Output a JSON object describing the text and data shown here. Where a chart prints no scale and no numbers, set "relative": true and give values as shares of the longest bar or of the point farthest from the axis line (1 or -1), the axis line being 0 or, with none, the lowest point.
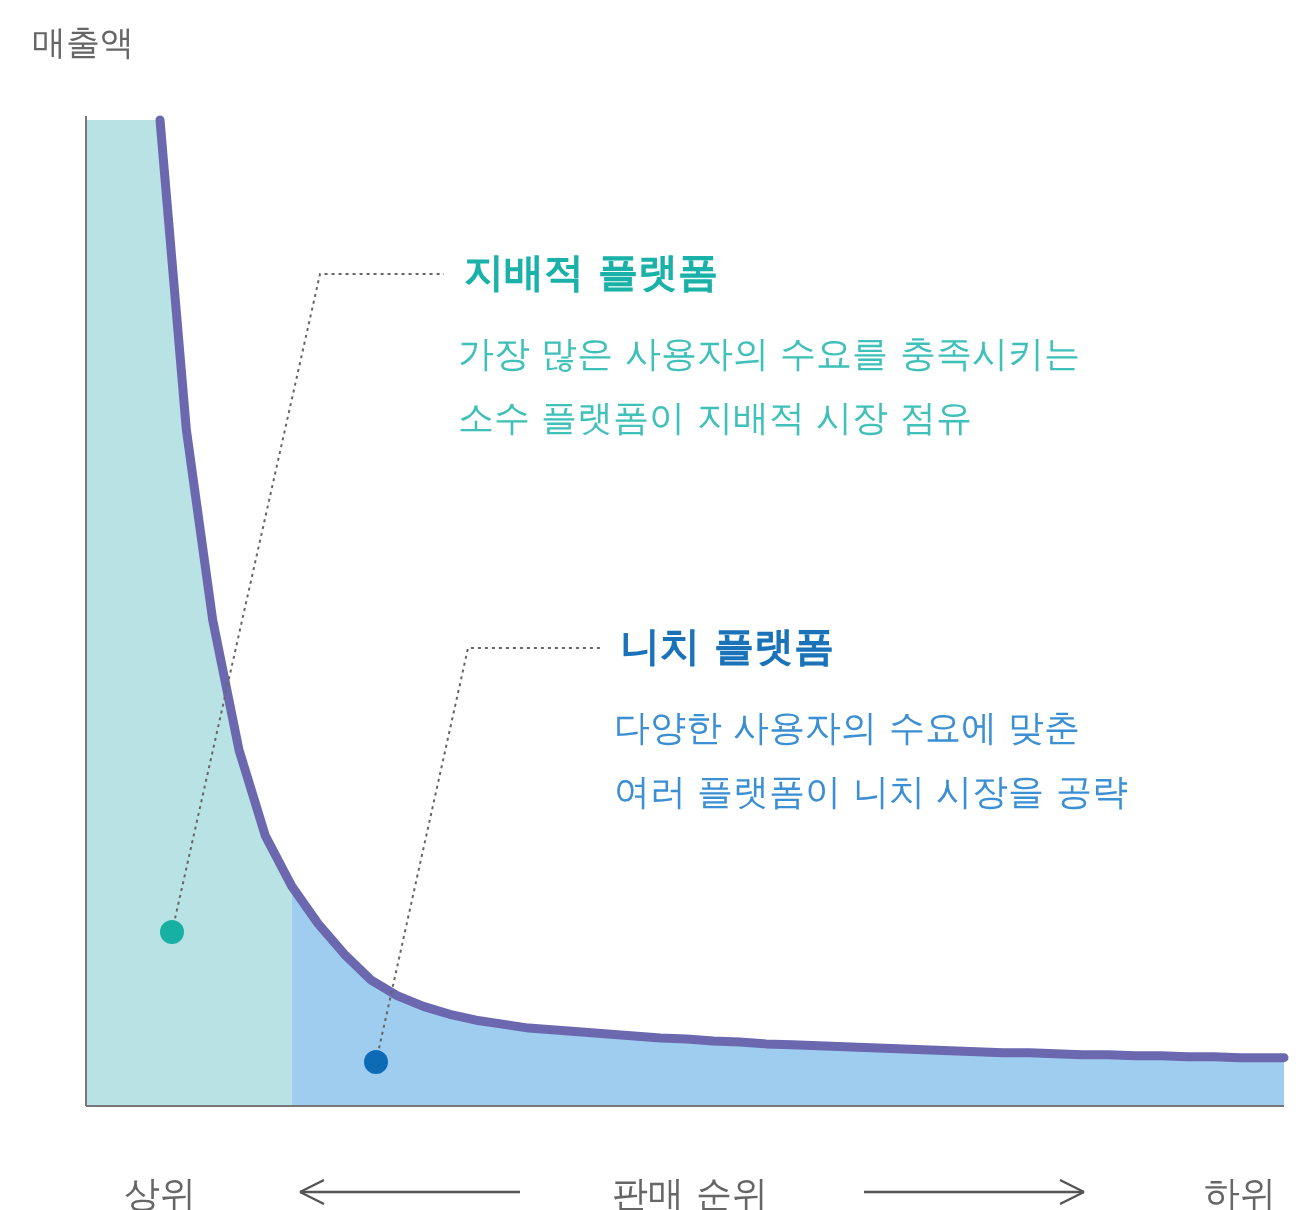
{
  "chart_data": {
    "type": "area",
    "relative": true,
    "ylabel": "매출액",
    "xlabel": "판매 순위",
    "categories": [
      "상위",
      null,
      null,
      null,
      null,
      null,
      null,
      null,
      null,
      null,
      null,
      null,
      null,
      null,
      null,
      null,
      null,
      null,
      null,
      null,
      null,
      null,
      null,
      null,
      null,
      null,
      null,
      null,
      null,
      null,
      null,
      null,
      null,
      null,
      null,
      null,
      null,
      null,
      null,
      null,
      null,
      "하위"
    ],
    "series": [
      {
        "type": "area",
        "color": "#b9e2e4",
        "values": [
          1.0,
          0.686,
          0.493,
          0.361,
          0.274,
          0.223,
          null,
          null,
          null,
          null,
          null,
          null,
          null,
          null,
          null,
          null,
          null,
          null,
          null,
          null,
          null,
          null,
          null,
          null,
          null,
          null,
          null,
          null,
          null,
          null,
          null,
          null,
          null,
          null,
          null,
          null,
          null,
          null,
          null,
          null,
          null,
          null
        ]
      },
      {
        "type": "area",
        "color": "#9fcdef",
        "values": [
          null,
          null,
          null,
          null,
          null,
          0.223,
          0.185,
          0.154,
          0.128,
          0.112,
          0.101,
          0.093,
          0.087,
          0.083,
          0.079,
          0.077,
          0.075,
          0.073,
          0.071,
          0.069,
          0.068,
          0.066,
          0.065,
          0.063,
          0.062,
          0.061,
          0.06,
          0.059,
          0.058,
          0.057,
          0.056,
          0.055,
          0.054,
          0.054,
          0.053,
          0.052,
          0.052,
          0.051,
          0.051,
          0.05,
          0.05,
          0.049
        ]
      },
      {
        "type": "line",
        "color": "#6b68b0",
        "values": [
          1.0,
          0.686,
          0.493,
          0.361,
          0.274,
          0.223,
          0.185,
          0.154,
          0.128,
          0.112,
          0.101,
          0.093,
          0.087,
          0.083,
          0.079,
          0.077,
          0.075,
          0.073,
          0.071,
          0.069,
          0.068,
          0.066,
          0.065,
          0.063,
          0.062,
          0.061,
          0.06,
          0.059,
          0.058,
          0.057,
          0.056,
          0.055,
          0.054,
          0.054,
          0.053,
          0.052,
          0.052,
          0.051,
          0.051,
          0.05,
          0.05,
          0.049
        ]
      }
    ],
    "annotations": [
      "지배적 플랫폼",
      "가장 많은 사용자의 수요를 충족시키는",
      "소수 플랫폼이 지배적 시장 점유",
      "니치 플랫폼",
      "다양한 사용자의 수요에 맞춘",
      "여러 플랫폼이 니치 시장을 공략"
    ]
  }
}
